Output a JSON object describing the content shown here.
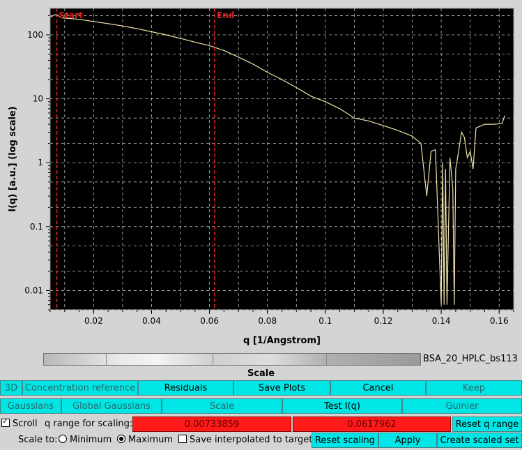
{
  "chart_data": {
    "type": "line",
    "xlabel": "q [1/Angstrom]",
    "ylabel": "I(q) [a.u.] (log scale)",
    "ylog": true,
    "xlim": [
      0.005,
      0.165
    ],
    "ylim": [
      0.005,
      260
    ],
    "x_ticks": [
      "0.02",
      "0.04",
      "0.06",
      "0.08",
      "0.1",
      "0.12",
      "0.14",
      "0.16"
    ],
    "x_tick_values": [
      0.02,
      0.04,
      0.06,
      0.08,
      0.1,
      0.12,
      0.14,
      0.16
    ],
    "y_ticks": [
      "100",
      "10",
      "1",
      "0.1",
      "0.01"
    ],
    "y_tick_values": [
      100,
      10,
      1,
      0.1,
      0.01
    ],
    "grid": true,
    "background": "#000000",
    "series_color": "#f0e2a8",
    "marker_color": "#e02020",
    "markers": [
      {
        "label": "Start",
        "x": 0.0073
      },
      {
        "label": "End",
        "x": 0.0618
      }
    ],
    "x": [
      0.005,
      0.007,
      0.009,
      0.012,
      0.015,
      0.02,
      0.025,
      0.03,
      0.035,
      0.04,
      0.045,
      0.05,
      0.055,
      0.06,
      0.065,
      0.07,
      0.075,
      0.08,
      0.085,
      0.09,
      0.095,
      0.1,
      0.105,
      0.11,
      0.115,
      0.12,
      0.125,
      0.13,
      0.133,
      0.135,
      0.1365,
      0.138,
      0.14,
      0.1405,
      0.141,
      0.1415,
      0.142,
      0.143,
      0.144,
      0.1445,
      0.145,
      0.146,
      0.147,
      0.148,
      0.149,
      0.15,
      0.151,
      0.152,
      0.155,
      0.158,
      0.161,
      0.162
    ],
    "y": [
      190,
      210,
      185,
      180,
      175,
      162,
      150,
      138,
      125,
      112,
      100,
      88,
      77,
      68,
      57,
      45,
      35,
      26,
      20,
      15,
      11,
      9,
      7,
      5,
      4.5,
      3.8,
      3.2,
      2.6,
      2.0,
      0.3,
      1.5,
      1.6,
      0.006,
      1.0,
      0.006,
      0.8,
      0.006,
      1.2,
      0.4,
      0.006,
      0.8,
      1.5,
      3.0,
      2.5,
      1.2,
      1.5,
      0.8,
      3.5,
      4.0,
      4.0,
      4.1,
      5.5
    ]
  },
  "scale": {
    "dataset_name": "BSA_20_HPLC_bs113",
    "title": "Scale"
  },
  "row1": [
    "3D",
    "Concentration reference",
    "Residuals",
    "Save Plots",
    "Cancel",
    "Keep"
  ],
  "row2": [
    "Gaussians",
    "Global Gaussians",
    "Scale",
    "Test I(q)",
    "Guinier"
  ],
  "row3": {
    "scroll_label": "Scroll",
    "scroll_checked": true,
    "q_range_label": "q range for scaling:",
    "q_min": "0.00733859",
    "q_max": "0.0617962",
    "reset_q_range": "Reset q range"
  },
  "row4": {
    "scale_to_label": "Scale to:",
    "minimum_label": "Minimum",
    "maximum_label": "Maximum",
    "selected": "Maximum",
    "save_interp_label": "Save interpolated to target",
    "save_interp_checked": false,
    "reset_scaling": "Reset scaling",
    "apply": "Apply",
    "create_scaled_set": "Create scaled set"
  }
}
